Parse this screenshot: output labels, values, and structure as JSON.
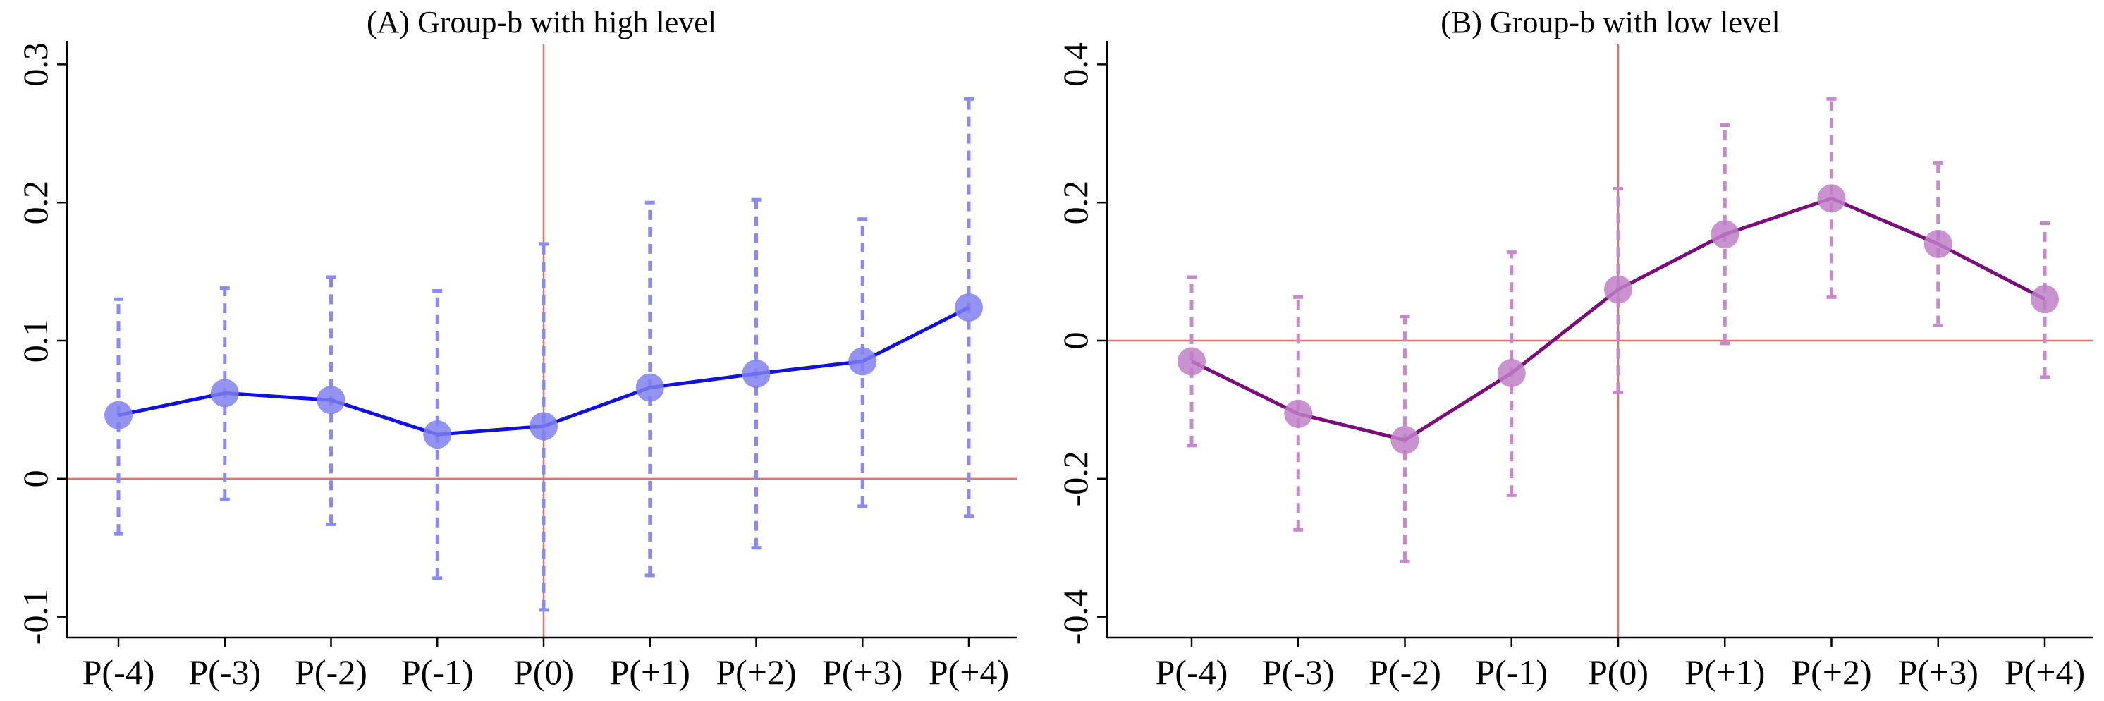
{
  "chart_data": [
    {
      "type": "line",
      "title": "(A) Group-b with high level",
      "xlabel": "",
      "ylabel": "",
      "categories": [
        "P(-4)",
        "P(-3)",
        "P(-2)",
        "P(-1)",
        "P(0)",
        "P(+1)",
        "P(+2)",
        "P(+3)",
        "P(+4)"
      ],
      "series": [
        {
          "values": [
            0.046,
            0.062,
            0.057,
            0.032,
            0.038,
            0.066,
            0.076,
            0.085,
            0.124
          ],
          "ci_lower": [
            -0.04,
            -0.015,
            -0.033,
            -0.072,
            -0.095,
            -0.07,
            -0.05,
            -0.02,
            -0.027
          ],
          "ci_upper": [
            0.13,
            0.138,
            0.146,
            0.136,
            0.17,
            0.2,
            0.202,
            0.188,
            0.275
          ]
        }
      ],
      "yticks": [
        "-0.1",
        "0",
        "0.1",
        "0.2",
        "0.3"
      ],
      "ytick_values": [
        -0.1,
        0,
        0.1,
        0.2,
        0.3
      ],
      "ylim": [
        -0.115,
        0.315
      ],
      "reference_lines": {
        "horizontal_y": 0,
        "vertical_category": "P(0)"
      },
      "grid": false,
      "colors": {
        "line": "#1010e0",
        "marker": "#8080ee",
        "ci": "#8a8af4",
        "reference": "#e8706a"
      }
    },
    {
      "type": "line",
      "title": "(B) Group-b with low level",
      "xlabel": "",
      "ylabel": "",
      "categories": [
        "P(-4)",
        "P(-3)",
        "P(-2)",
        "P(-1)",
        "P(0)",
        "P(+1)",
        "P(+2)",
        "P(+3)",
        "P(+4)"
      ],
      "series": [
        {
          "values": [
            -0.03,
            -0.106,
            -0.144,
            -0.047,
            0.074,
            0.154,
            0.206,
            0.14,
            0.06
          ],
          "ci_lower": [
            -0.152,
            -0.274,
            -0.32,
            -0.224,
            -0.075,
            -0.004,
            0.063,
            0.022,
            -0.053
          ],
          "ci_upper": [
            0.092,
            0.063,
            0.035,
            0.128,
            0.22,
            0.312,
            0.35,
            0.257,
            0.17
          ]
        }
      ],
      "yticks": [
        "-0.4",
        "-0.2",
        "0",
        "0.2",
        "0.4"
      ],
      "ytick_values": [
        -0.4,
        -0.2,
        0,
        0.2,
        0.4
      ],
      "ylim": [
        -0.43,
        0.43
      ],
      "reference_lines": {
        "horizontal_y": 0,
        "vertical_category": "P(0)"
      },
      "grid": false,
      "colors": {
        "line": "#7a0d7a",
        "marker": "#c080c8",
        "ci": "#c888cc",
        "reference": "#e8706a"
      }
    }
  ]
}
